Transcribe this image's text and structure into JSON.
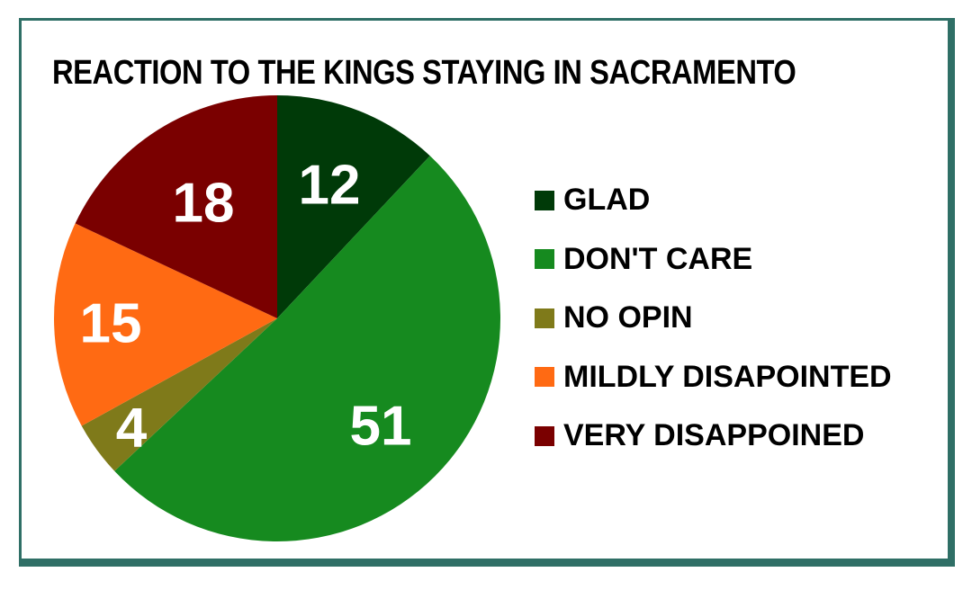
{
  "chart_data": {
    "type": "pie",
    "title": "REACTION TO THE KINGS STAYING IN SACRAMENTO",
    "categories": [
      "GLAD",
      "DON'T CARE",
      "NO OPIN",
      "MILDLY DISAPOINTED",
      "VERY DISAPPOINED"
    ],
    "values": [
      12,
      51,
      4,
      15,
      18
    ],
    "colors": [
      "#003a08",
      "#168a1f",
      "#7f7a1a",
      "#ff6a13",
      "#7a0000"
    ],
    "legend_position": "right",
    "data_labels": [
      "12",
      "51",
      "4",
      "15",
      "18"
    ]
  }
}
